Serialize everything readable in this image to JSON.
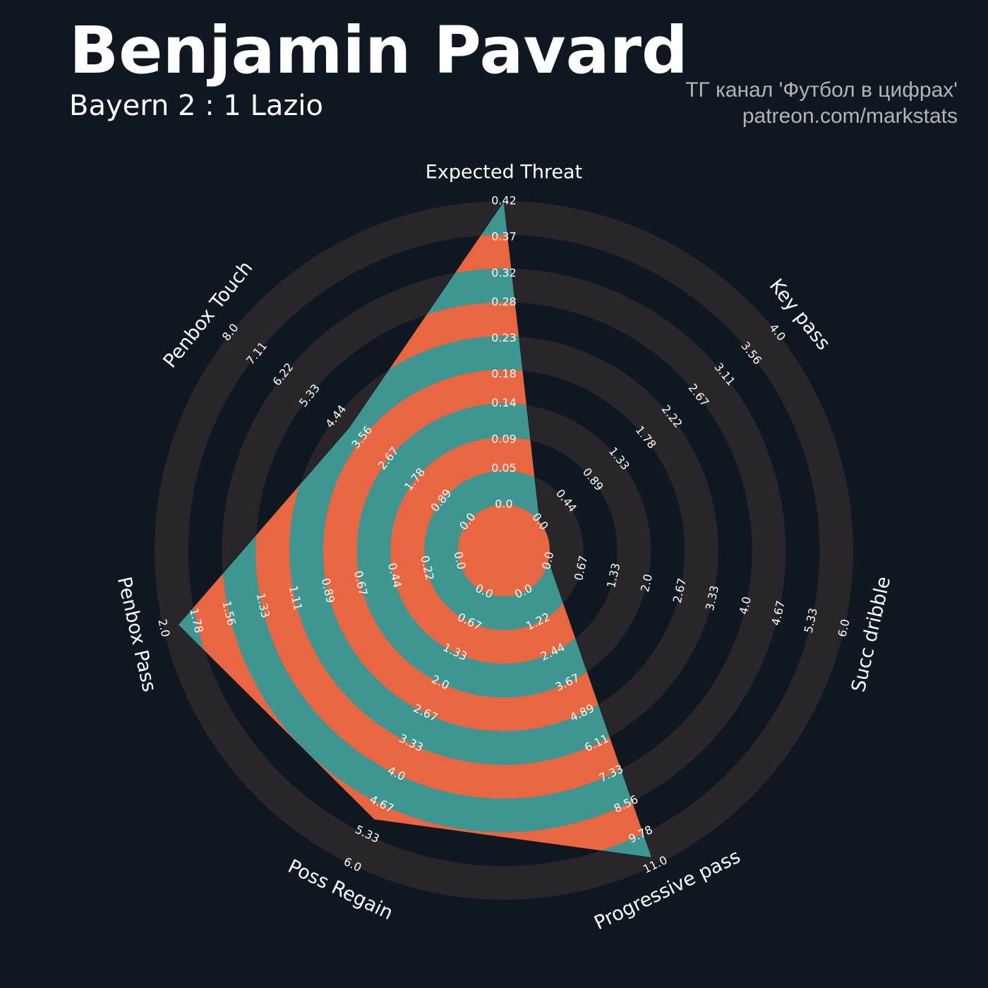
{
  "chart_data": {
    "type": "radar",
    "title": "Benjamin Pavard",
    "subtitle": "Bayern 2 : 1 Lazio",
    "credits": [
      "ТГ канал 'Футбол в цифрах'",
      "patreon.com/markstats"
    ],
    "categories": [
      "Expected Threat",
      "Key pass",
      "Succ dribble",
      "Progressive pass",
      "Poss Regain",
      "Penbox Pass",
      "Penbox Touch"
    ],
    "values": [
      0.42,
      0,
      0,
      10.7,
      5.0,
      1.9,
      4.0
    ],
    "ranges": [
      [
        0,
        0.42
      ],
      [
        0,
        4
      ],
      [
        0,
        6
      ],
      [
        0,
        11
      ],
      [
        0,
        6
      ],
      [
        0,
        2
      ],
      [
        0,
        8
      ]
    ],
    "ticks": [
      [
        {
          "value": 0,
          "label": "0.0"
        },
        0.05,
        0.09,
        0.14,
        0.18,
        0.23,
        0.28,
        0.32,
        0.37,
        0.42
      ],
      [
        {
          "value": 0,
          "label": "0.0"
        },
        0.44,
        0.89,
        1.33,
        1.78,
        2.22,
        2.67,
        3.11,
        3.56,
        {
          "value": 4,
          "label": "4.0"
        }
      ],
      [
        {
          "value": 0,
          "label": "0.0"
        },
        0.67,
        1.33,
        {
          "value": 2,
          "label": "2.0"
        },
        2.67,
        3.33,
        {
          "value": 4,
          "label": "4.0"
        },
        4.67,
        5.33,
        {
          "value": 6,
          "label": "6.0"
        }
      ],
      [
        {
          "value": 0,
          "label": "0.0"
        },
        1.22,
        2.44,
        3.67,
        4.89,
        6.11,
        7.33,
        8.56,
        9.78,
        {
          "value": 11,
          "label": "11.0"
        }
      ],
      [
        {
          "value": 0,
          "label": "0.0"
        },
        0.67,
        1.33,
        {
          "value": 2,
          "label": "2.0"
        },
        2.67,
        3.33,
        {
          "value": 4,
          "label": "4.0"
        },
        4.67,
        5.33,
        {
          "value": 6,
          "label": "6.0"
        }
      ],
      [
        {
          "value": 0,
          "label": "0.0"
        },
        0.22,
        0.44,
        0.67,
        0.89,
        1.11,
        1.33,
        1.56,
        1.78,
        {
          "value": 2,
          "label": "2.0"
        }
      ],
      [
        {
          "value": 0,
          "label": "0.0"
        },
        0.89,
        1.78,
        2.67,
        3.56,
        4.44,
        5.33,
        6.22,
        7.11,
        {
          "value": 8,
          "label": "8.0"
        }
      ]
    ],
    "colors": {
      "fill_a": "#3f9690",
      "fill_b": "#e86642",
      "ring": "#28252b",
      "background": "#0f1820"
    }
  }
}
